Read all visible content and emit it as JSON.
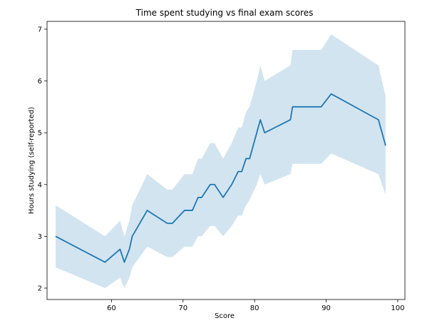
{
  "chart_data": {
    "type": "line",
    "title": "Time spent studying vs final exam scores",
    "xlabel": "Score",
    "ylabel": "Hours studying (self-reported)",
    "xlim": [
      51,
      101
    ],
    "ylim": [
      1.78,
      7.15
    ],
    "xticks": [
      60,
      70,
      80,
      90,
      100
    ],
    "yticks": [
      2,
      3,
      4,
      5,
      6,
      7
    ],
    "grid": false,
    "legend": "none",
    "colors": {
      "line": "#1f77b4",
      "band": "#1f77b4",
      "band_opacity": 0.2,
      "axes": "#000000",
      "background": "#ffffff"
    },
    "series": [
      {
        "x": [
          52.2,
          59.1,
          61.2,
          61.8,
          62.5,
          62.9,
          65.0,
          67.8,
          68.5,
          70.2,
          71.3,
          72.1,
          72.6,
          73.8,
          74.4,
          75.6,
          76.8,
          77.7,
          78.2,
          78.8,
          79.3,
          80.3,
          80.8,
          81.4,
          85.0,
          85.3,
          89.3,
          90.7,
          97.3,
          98.3
        ],
        "y": [
          3.0,
          2.5,
          2.75,
          2.5,
          2.75,
          3.0,
          3.5,
          3.25,
          3.25,
          3.5,
          3.5,
          3.75,
          3.75,
          4.0,
          4.0,
          3.75,
          4.0,
          4.25,
          4.25,
          4.5,
          4.5,
          5.0,
          5.25,
          5.0,
          5.25,
          5.5,
          5.5,
          5.75,
          5.25,
          4.75
        ],
        "ci_low": [
          2.4,
          2.0,
          2.2,
          2.0,
          2.2,
          2.4,
          2.8,
          2.6,
          2.6,
          2.8,
          2.8,
          3.0,
          3.0,
          3.2,
          3.2,
          3.0,
          3.2,
          3.4,
          3.4,
          3.6,
          3.7,
          4.0,
          4.2,
          4.0,
          4.2,
          4.4,
          4.4,
          4.6,
          4.2,
          3.8
        ],
        "ci_high": [
          3.6,
          3.0,
          3.3,
          3.0,
          3.3,
          3.6,
          4.2,
          3.9,
          3.9,
          4.2,
          4.2,
          4.5,
          4.5,
          4.8,
          4.8,
          4.5,
          4.8,
          5.1,
          5.1,
          5.4,
          5.5,
          6.0,
          6.3,
          6.0,
          6.3,
          6.6,
          6.6,
          6.9,
          6.3,
          5.7
        ]
      }
    ]
  }
}
